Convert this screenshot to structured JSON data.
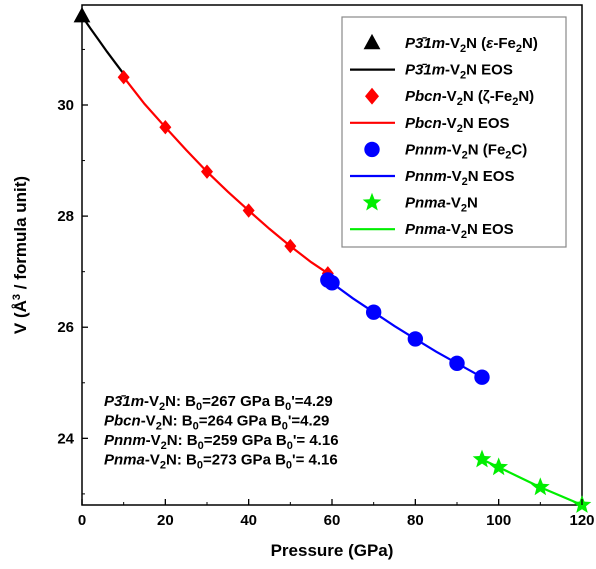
{
  "chart_data": {
    "type": "scatter",
    "xlabel": "Pressure (GPa)",
    "ylabel": "V (Å³ / formula unit)",
    "xlim": [
      0,
      120
    ],
    "ylim": [
      22.8,
      31.8
    ],
    "x_ticks": [
      0,
      20,
      40,
      60,
      80,
      100,
      120
    ],
    "y_ticks": [
      24,
      26,
      28,
      30
    ],
    "grid": false,
    "legend_position": "top-right",
    "series": [
      {
        "name": "P3̄1m-V2N (ε-Fe2N)",
        "kind": "points",
        "marker": "triangle",
        "color": "#000000",
        "x": [
          0
        ],
        "y": [
          31.6
        ]
      },
      {
        "name": "P3̄1m-V2N EOS",
        "kind": "line",
        "color": "#000000",
        "x": [
          0,
          2,
          4,
          6,
          8,
          10
        ],
        "y": [
          31.6,
          31.38,
          31.17,
          30.96,
          30.76,
          30.56
        ]
      },
      {
        "name": "Pbcn-V2N (ζ-Fe2N)",
        "kind": "points",
        "marker": "diamond",
        "color": "#ff0000",
        "x": [
          10,
          20,
          30,
          40,
          50,
          59
        ],
        "y": [
          30.5,
          29.6,
          28.8,
          28.1,
          27.46,
          26.97
        ]
      },
      {
        "name": "Pbcn-V2N EOS",
        "kind": "line",
        "color": "#ff0000",
        "x": [
          10,
          15,
          20,
          25,
          30,
          35,
          40,
          45,
          50,
          55,
          59
        ],
        "y": [
          30.5,
          30.02,
          29.6,
          29.19,
          28.8,
          28.44,
          28.1,
          27.77,
          27.46,
          27.17,
          26.97
        ]
      },
      {
        "name": "Pnnm-V2N (Fe2C)",
        "kind": "points",
        "marker": "circle",
        "color": "#0000ff",
        "x": [
          59,
          60,
          70,
          80,
          90,
          96
        ],
        "y": [
          26.85,
          26.8,
          26.27,
          25.79,
          25.35,
          25.1
        ]
      },
      {
        "name": "Pnnm-V2N EOS",
        "kind": "line",
        "color": "#0000ff",
        "x": [
          59,
          65,
          70,
          75,
          80,
          85,
          90,
          96
        ],
        "y": [
          26.85,
          26.52,
          26.27,
          26.02,
          25.79,
          25.56,
          25.35,
          25.1
        ]
      },
      {
        "name": "Pnma-V2N",
        "kind": "points",
        "marker": "star",
        "color": "#00ee00",
        "x": [
          96,
          100,
          110,
          120
        ],
        "y": [
          23.62,
          23.48,
          23.12,
          22.8
        ]
      },
      {
        "name": "Pnma-V2N EOS",
        "kind": "line",
        "color": "#00ee00",
        "x": [
          96,
          100,
          105,
          110,
          115,
          120
        ],
        "y": [
          23.62,
          23.48,
          23.3,
          23.12,
          22.96,
          22.8
        ]
      }
    ],
    "legend": [
      {
        "prefix": "P",
        "sym": "3̄1m",
        "mid": "-V",
        "sub": "2",
        "tail": "N (",
        "extra": "ε",
        "extra2": "-Fe",
        "sub2": "2",
        "tail2": "N)"
      },
      {
        "text": "P3̄1m-V2N EOS"
      },
      {
        "text": "Pbcn-V2N (ζ-Fe2N)"
      },
      {
        "text": "Pbcn-V2N EOS"
      },
      {
        "text": "Pnnm-V2N (Fe2C)"
      },
      {
        "text": "Pnnm-V2N EOS"
      },
      {
        "text": "Pnma-V2N"
      },
      {
        "text": "Pnma-V2N EOS"
      }
    ],
    "annotations": [
      {
        "phase": "P3̄1m",
        "rest": "-V",
        "sub": "2",
        "rest2": "N: B",
        "b0sub": "0",
        "val": "=267 GPa  B",
        "b1sub": "0",
        "val2": "'=4.29"
      },
      {
        "phase": "Pbcn",
        "rest": "-V",
        "sub": "2",
        "rest2": "N: B",
        "b0sub": "0",
        "val": "=264 GPa  B",
        "b1sub": "0",
        "val2": "'=4.29"
      },
      {
        "phase": "Pnnm",
        "rest": "-V",
        "sub": "2",
        "rest2": "N: B",
        "b0sub": "0",
        "val": "=259 GPa  B",
        "b1sub": "0",
        "val2": "'= 4.16"
      },
      {
        "phase": "Pnma",
        "rest": "-V",
        "sub": "2",
        "rest2": "N: B",
        "b0sub": "0",
        "val": "=273 GPa  B",
        "b1sub": "0",
        "val2": "'= 4.16"
      }
    ]
  }
}
